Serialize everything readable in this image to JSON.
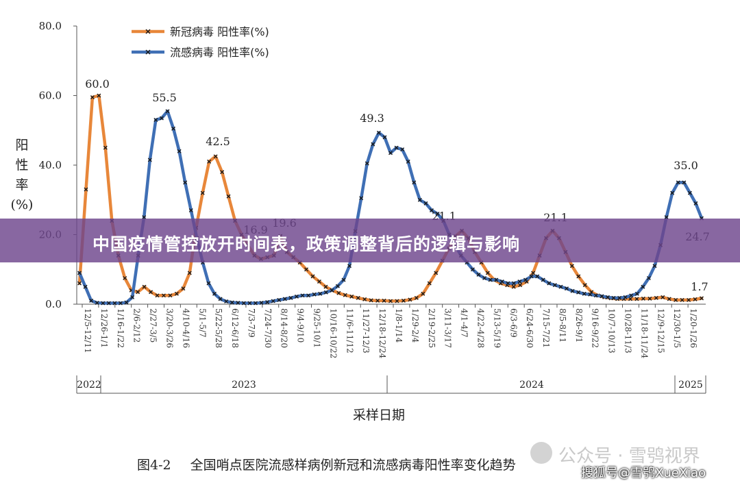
{
  "banner": {
    "text": "中国疫情管控放开时间表，政策调整背后的逻辑与影响"
  },
  "caption": {
    "number": "图4-2",
    "text": "全国哨点医院流感样病例新冠和流感病毒阳性率变化趋势"
  },
  "watermark": {
    "text": "公众号 · 雪鸮视界"
  },
  "credit": {
    "text": "搜狐号@雪鸮XueXiao"
  },
  "colors": {
    "covid": "#e8873a",
    "flu": "#3f6fb5",
    "marker": "#1a1a1a"
  },
  "chart_data": {
    "type": "line",
    "ylim": [
      0,
      80
    ],
    "yticks": [
      "0.0",
      "20.0",
      "40.0",
      "60.0",
      "80.0"
    ],
    "ylabel": [
      "阳",
      "性",
      "率",
      "(%)"
    ],
    "xlabel": "采样日期",
    "x_tick_labels": [
      "12/5-12/11",
      "12/26-1/1",
      "1/16-1/22",
      "2/6-2/12",
      "2/27-3/5",
      "3/20-3/26",
      "4/10-4/16",
      "5/1-5/7",
      "5/22-5/28",
      "6/12-6/18",
      "7/3-7/9",
      "7/24-7/30",
      "8/14-8/20",
      "9/4-9/10",
      "9/25-10/1",
      "10/16-10/22",
      "11/6-11/12",
      "11/27-12/3",
      "12/18-12/24",
      "1/8-1/14",
      "1/29-2/4",
      "2/19-2/25",
      "3/11-3/17",
      "4/1-4/7",
      "4/22-4/28",
      "5/13-5/19",
      "6/3-6/9",
      "6/24-6/30",
      "7/15-7/21",
      "8/5-8/11",
      "8/26-9/1",
      "9/16-9/22",
      "10/7-10/13",
      "10/28-11/3",
      "11/18-11/24",
      "12/9-12/15",
      "12/30-1/5",
      "1/20-1/26"
    ],
    "years": [
      "2022",
      "2023",
      "2024",
      "2025"
    ],
    "legend_position": "top-left",
    "grid": false,
    "series": [
      {
        "name": "新冠病毒 阳性率(%)",
        "values": [
          6,
          33,
          59.5,
          60,
          45,
          24,
          14,
          7.5,
          4,
          3.5,
          5,
          3.5,
          2.5,
          2.5,
          2.5,
          3,
          4.5,
          9,
          22,
          32,
          41,
          42.5,
          38,
          31,
          24,
          20,
          16.9,
          14,
          13,
          13.5,
          14,
          19.6,
          15,
          13.5,
          12,
          10,
          8,
          6.5,
          5,
          4,
          3.2,
          2.6,
          2.2,
          1.8,
          1.4,
          1.1,
          1,
          1,
          0.9,
          0.9,
          1,
          1.3,
          1.8,
          3,
          6,
          9,
          12.5,
          16,
          19.5,
          21.1,
          19,
          15,
          12,
          9,
          7,
          6,
          5.5,
          5,
          5.5,
          6.5,
          9,
          14,
          19,
          21.1,
          19,
          15,
          11,
          8,
          5.5,
          3.5,
          2.5,
          2,
          1.7,
          1.5,
          1.5,
          1.5,
          1.5,
          1.6,
          1.6,
          1.8,
          2,
          1.5,
          1.2,
          1.2,
          1.2,
          1.4,
          1.7
        ],
        "labels": [
          {
            "value": "60.0"
          },
          {
            "value": "42.5"
          },
          {
            "value": "16.9"
          },
          {
            "value": "19.6"
          },
          {
            "value": "21.1"
          },
          {
            "value": "21.1"
          },
          {
            "value": "1.7"
          }
        ]
      },
      {
        "name": "流感病毒 阳性率(%)",
        "values": [
          9,
          5,
          1,
          0.4,
          0.3,
          0.3,
          0.3,
          0.3,
          0.5,
          2,
          14,
          25,
          41.5,
          53,
          53.5,
          55.5,
          50.5,
          44,
          35,
          27,
          19,
          12,
          6,
          3,
          1.5,
          0.8,
          0.5,
          0.4,
          0.3,
          0.3,
          0.3,
          0.4,
          0.6,
          0.9,
          1.2,
          1.5,
          1.8,
          2.2,
          2.5,
          2.5,
          2.8,
          3,
          3.4,
          4,
          5.2,
          7,
          11,
          21,
          30.5,
          40.5,
          46,
          49.3,
          48,
          43.5,
          45,
          44.5,
          41,
          35,
          30,
          29,
          27,
          26,
          24,
          20,
          17,
          14,
          12,
          10,
          8.5,
          7.5,
          7,
          7,
          6.5,
          6,
          6,
          6.5,
          7,
          8,
          8,
          7,
          6,
          5.5,
          5,
          4.5,
          3.8,
          3.4,
          3,
          2.8,
          2.5,
          2.3,
          2,
          1.8,
          1.8,
          2,
          2.5,
          3,
          5,
          7.5,
          11,
          17,
          25,
          32,
          35,
          35,
          32,
          29,
          24.7
        ],
        "labels": [
          {
            "value": "55.5"
          },
          {
            "value": "49.3"
          },
          {
            "value": "35.0"
          },
          {
            "value": "24.7"
          }
        ]
      }
    ]
  }
}
